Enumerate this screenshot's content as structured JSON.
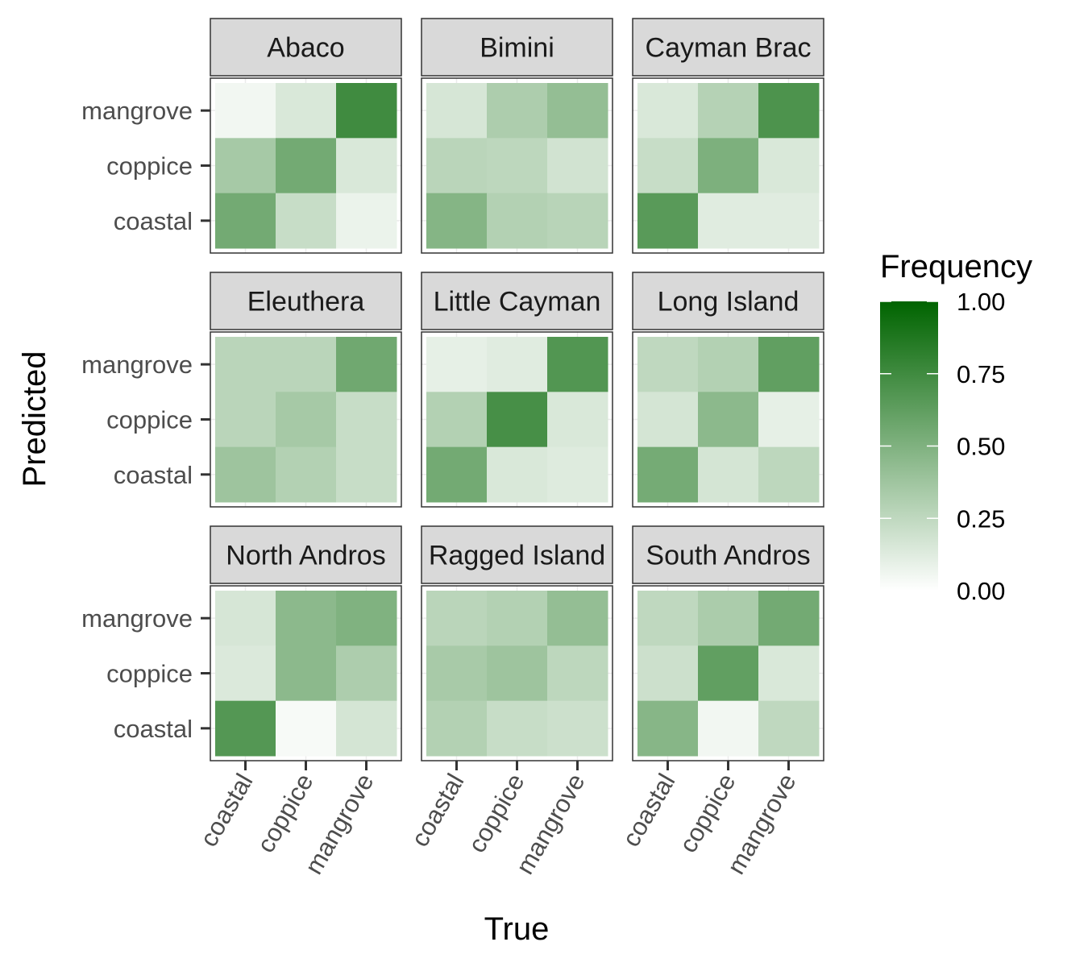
{
  "chart_data": {
    "type": "heatmap",
    "facet_layout": "3x3 grid",
    "xlabel": "True",
    "ylabel": "Predicted",
    "x_categories": [
      "coastal",
      "coppice",
      "mangrove"
    ],
    "y_categories": [
      "coastal",
      "coppice",
      "mangrove"
    ],
    "legend": {
      "title": "Frequency",
      "placement": "right",
      "ticks": [
        "0.00",
        "0.25",
        "0.50",
        "0.75",
        "1.00"
      ],
      "range": [
        0,
        1
      ],
      "low_color": "#ffffff",
      "high_color": "#006400"
    },
    "grid": true,
    "panel_strip_color": "#d9d9d9",
    "panels": [
      {
        "name": "Abaco",
        "values": {
          "mangrove": [
            0.05,
            0.15,
            0.75
          ],
          "coppice": [
            0.35,
            0.55,
            0.15
          ],
          "coastal": [
            0.55,
            0.22,
            0.08
          ]
        }
      },
      {
        "name": "Bimini",
        "values": {
          "mangrove": [
            0.16,
            0.32,
            0.42
          ],
          "coppice": [
            0.27,
            0.26,
            0.18
          ],
          "coastal": [
            0.48,
            0.3,
            0.28
          ]
        }
      },
      {
        "name": "Cayman Brac",
        "values": {
          "mangrove": [
            0.15,
            0.29,
            0.7
          ],
          "coppice": [
            0.22,
            0.51,
            0.15
          ],
          "coastal": [
            0.65,
            0.12,
            0.12
          ]
        }
      },
      {
        "name": "Eleuthera",
        "values": {
          "mangrove": [
            0.27,
            0.27,
            0.56
          ],
          "coppice": [
            0.27,
            0.35,
            0.22
          ],
          "coastal": [
            0.38,
            0.3,
            0.22
          ]
        }
      },
      {
        "name": "Little Cayman",
        "values": {
          "mangrove": [
            0.1,
            0.12,
            0.68
          ],
          "coppice": [
            0.3,
            0.72,
            0.15
          ],
          "coastal": [
            0.55,
            0.15,
            0.13
          ]
        }
      },
      {
        "name": "Long Island",
        "values": {
          "mangrove": [
            0.25,
            0.3,
            0.62
          ],
          "coppice": [
            0.17,
            0.45,
            0.1
          ],
          "coastal": [
            0.54,
            0.17,
            0.26
          ]
        }
      },
      {
        "name": "North Andros",
        "values": {
          "mangrove": [
            0.16,
            0.45,
            0.5
          ],
          "coppice": [
            0.14,
            0.45,
            0.32
          ],
          "coastal": [
            0.67,
            0.03,
            0.17
          ]
        }
      },
      {
        "name": "Ragged Island",
        "values": {
          "mangrove": [
            0.27,
            0.3,
            0.42
          ],
          "coppice": [
            0.34,
            0.38,
            0.26
          ],
          "coastal": [
            0.3,
            0.22,
            0.2
          ]
        }
      },
      {
        "name": "South Andros",
        "values": {
          "mangrove": [
            0.25,
            0.33,
            0.55
          ],
          "coppice": [
            0.2,
            0.62,
            0.15
          ],
          "coastal": [
            0.47,
            0.05,
            0.25
          ]
        }
      }
    ]
  }
}
